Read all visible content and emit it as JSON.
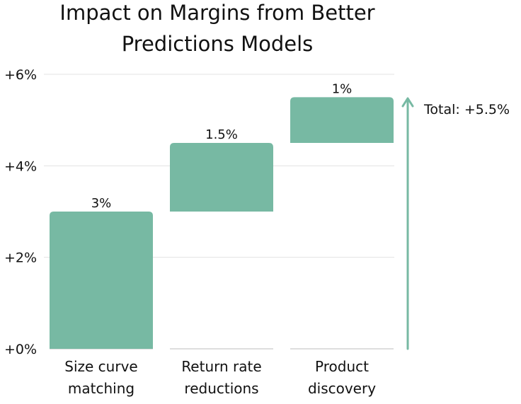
{
  "chart_data": {
    "type": "bar",
    "subtype": "waterfall",
    "title": [
      "Impact on Margins from Better",
      "Predictions Models"
    ],
    "categories": [
      [
        "Size curve",
        "matching"
      ],
      [
        "Return rate",
        "reductions"
      ],
      [
        "Product",
        "discovery"
      ]
    ],
    "values": [
      3,
      1.5,
      1
    ],
    "data_labels": [
      "3%",
      "1.5%",
      "1%"
    ],
    "ylim": [
      0,
      6
    ],
    "yticks": [
      0,
      2,
      4,
      6
    ],
    "ytick_labels": [
      "+0%",
      "+2%",
      "+4%",
      "+6%"
    ],
    "grid": true,
    "total_label": "Total: +5.5%",
    "bar_color": "#77b9a3",
    "arrow_color": "#77b9a3"
  }
}
